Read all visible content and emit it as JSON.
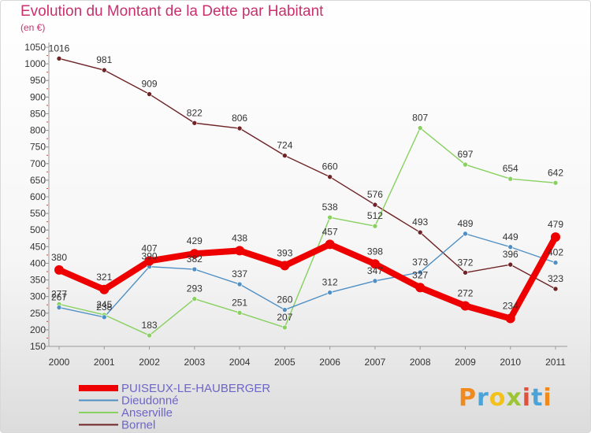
{
  "chart_data": {
    "type": "line",
    "title": "Evolution du Montant de la Dette par Habitant",
    "subtitle": "(en €)",
    "x": [
      "2000",
      "2001",
      "2002",
      "2003",
      "2004",
      "2005",
      "2006",
      "2007",
      "2008",
      "2009",
      "2010",
      "2011"
    ],
    "ylim": [
      150,
      1050
    ],
    "yticks": [
      150,
      200,
      250,
      300,
      350,
      400,
      450,
      500,
      550,
      600,
      650,
      700,
      750,
      800,
      850,
      900,
      950,
      1000,
      1050
    ],
    "grid": false,
    "legend": "bottom-left",
    "series": [
      {
        "name": "PUISEUX-LE-HAUBERGER",
        "color": "#ee0000",
        "values": [
          380,
          321,
          407,
          429,
          438,
          393,
          457,
          398,
          327,
          272,
          234,
          479
        ]
      },
      {
        "name": "Dieudonné",
        "color": "#4f8fc4",
        "values": [
          267,
          238,
          390,
          382,
          337,
          260,
          312,
          347,
          373,
          489,
          449,
          402
        ]
      },
      {
        "name": "Anserville",
        "color": "#88d060",
        "values": [
          277,
          245,
          183,
          293,
          251,
          207,
          538,
          512,
          807,
          697,
          654,
          642
        ]
      },
      {
        "name": "Bornel",
        "color": "#6e2326",
        "values": [
          1016,
          981,
          909,
          822,
          806,
          724,
          660,
          576,
          493,
          372,
          396,
          323
        ]
      }
    ]
  },
  "logo": {
    "text": "Proxiti",
    "letters": [
      "P",
      "r",
      "o",
      "x",
      "i",
      "t",
      "i"
    ]
  }
}
